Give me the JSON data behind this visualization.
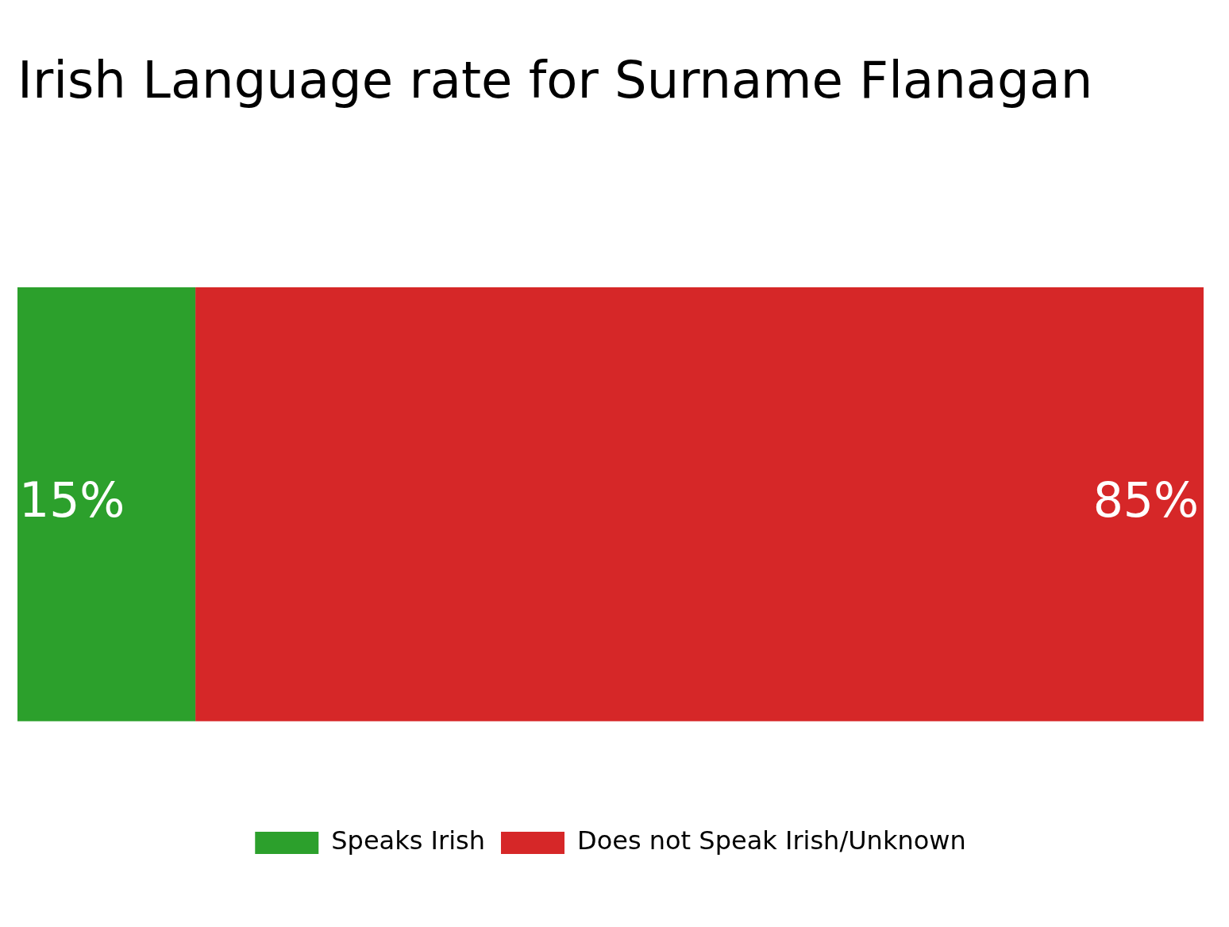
{
  "chart_data": {
    "type": "bar",
    "title": "Irish Language rate for Surname Flanagan",
    "orientation": "horizontal",
    "stacked": true,
    "categories": [
      null
    ],
    "series": [
      {
        "name": "Speaks Irish",
        "color": "#2ca02c",
        "values": [
          15
        ],
        "value_labels": [
          "15%"
        ]
      },
      {
        "name": "Does not Speak Irish/Unknown",
        "color": "#d62728",
        "values": [
          85
        ],
        "value_labels": [
          "85%"
        ]
      }
    ],
    "tick_labels": false,
    "grid": false,
    "legend": "bottom"
  }
}
